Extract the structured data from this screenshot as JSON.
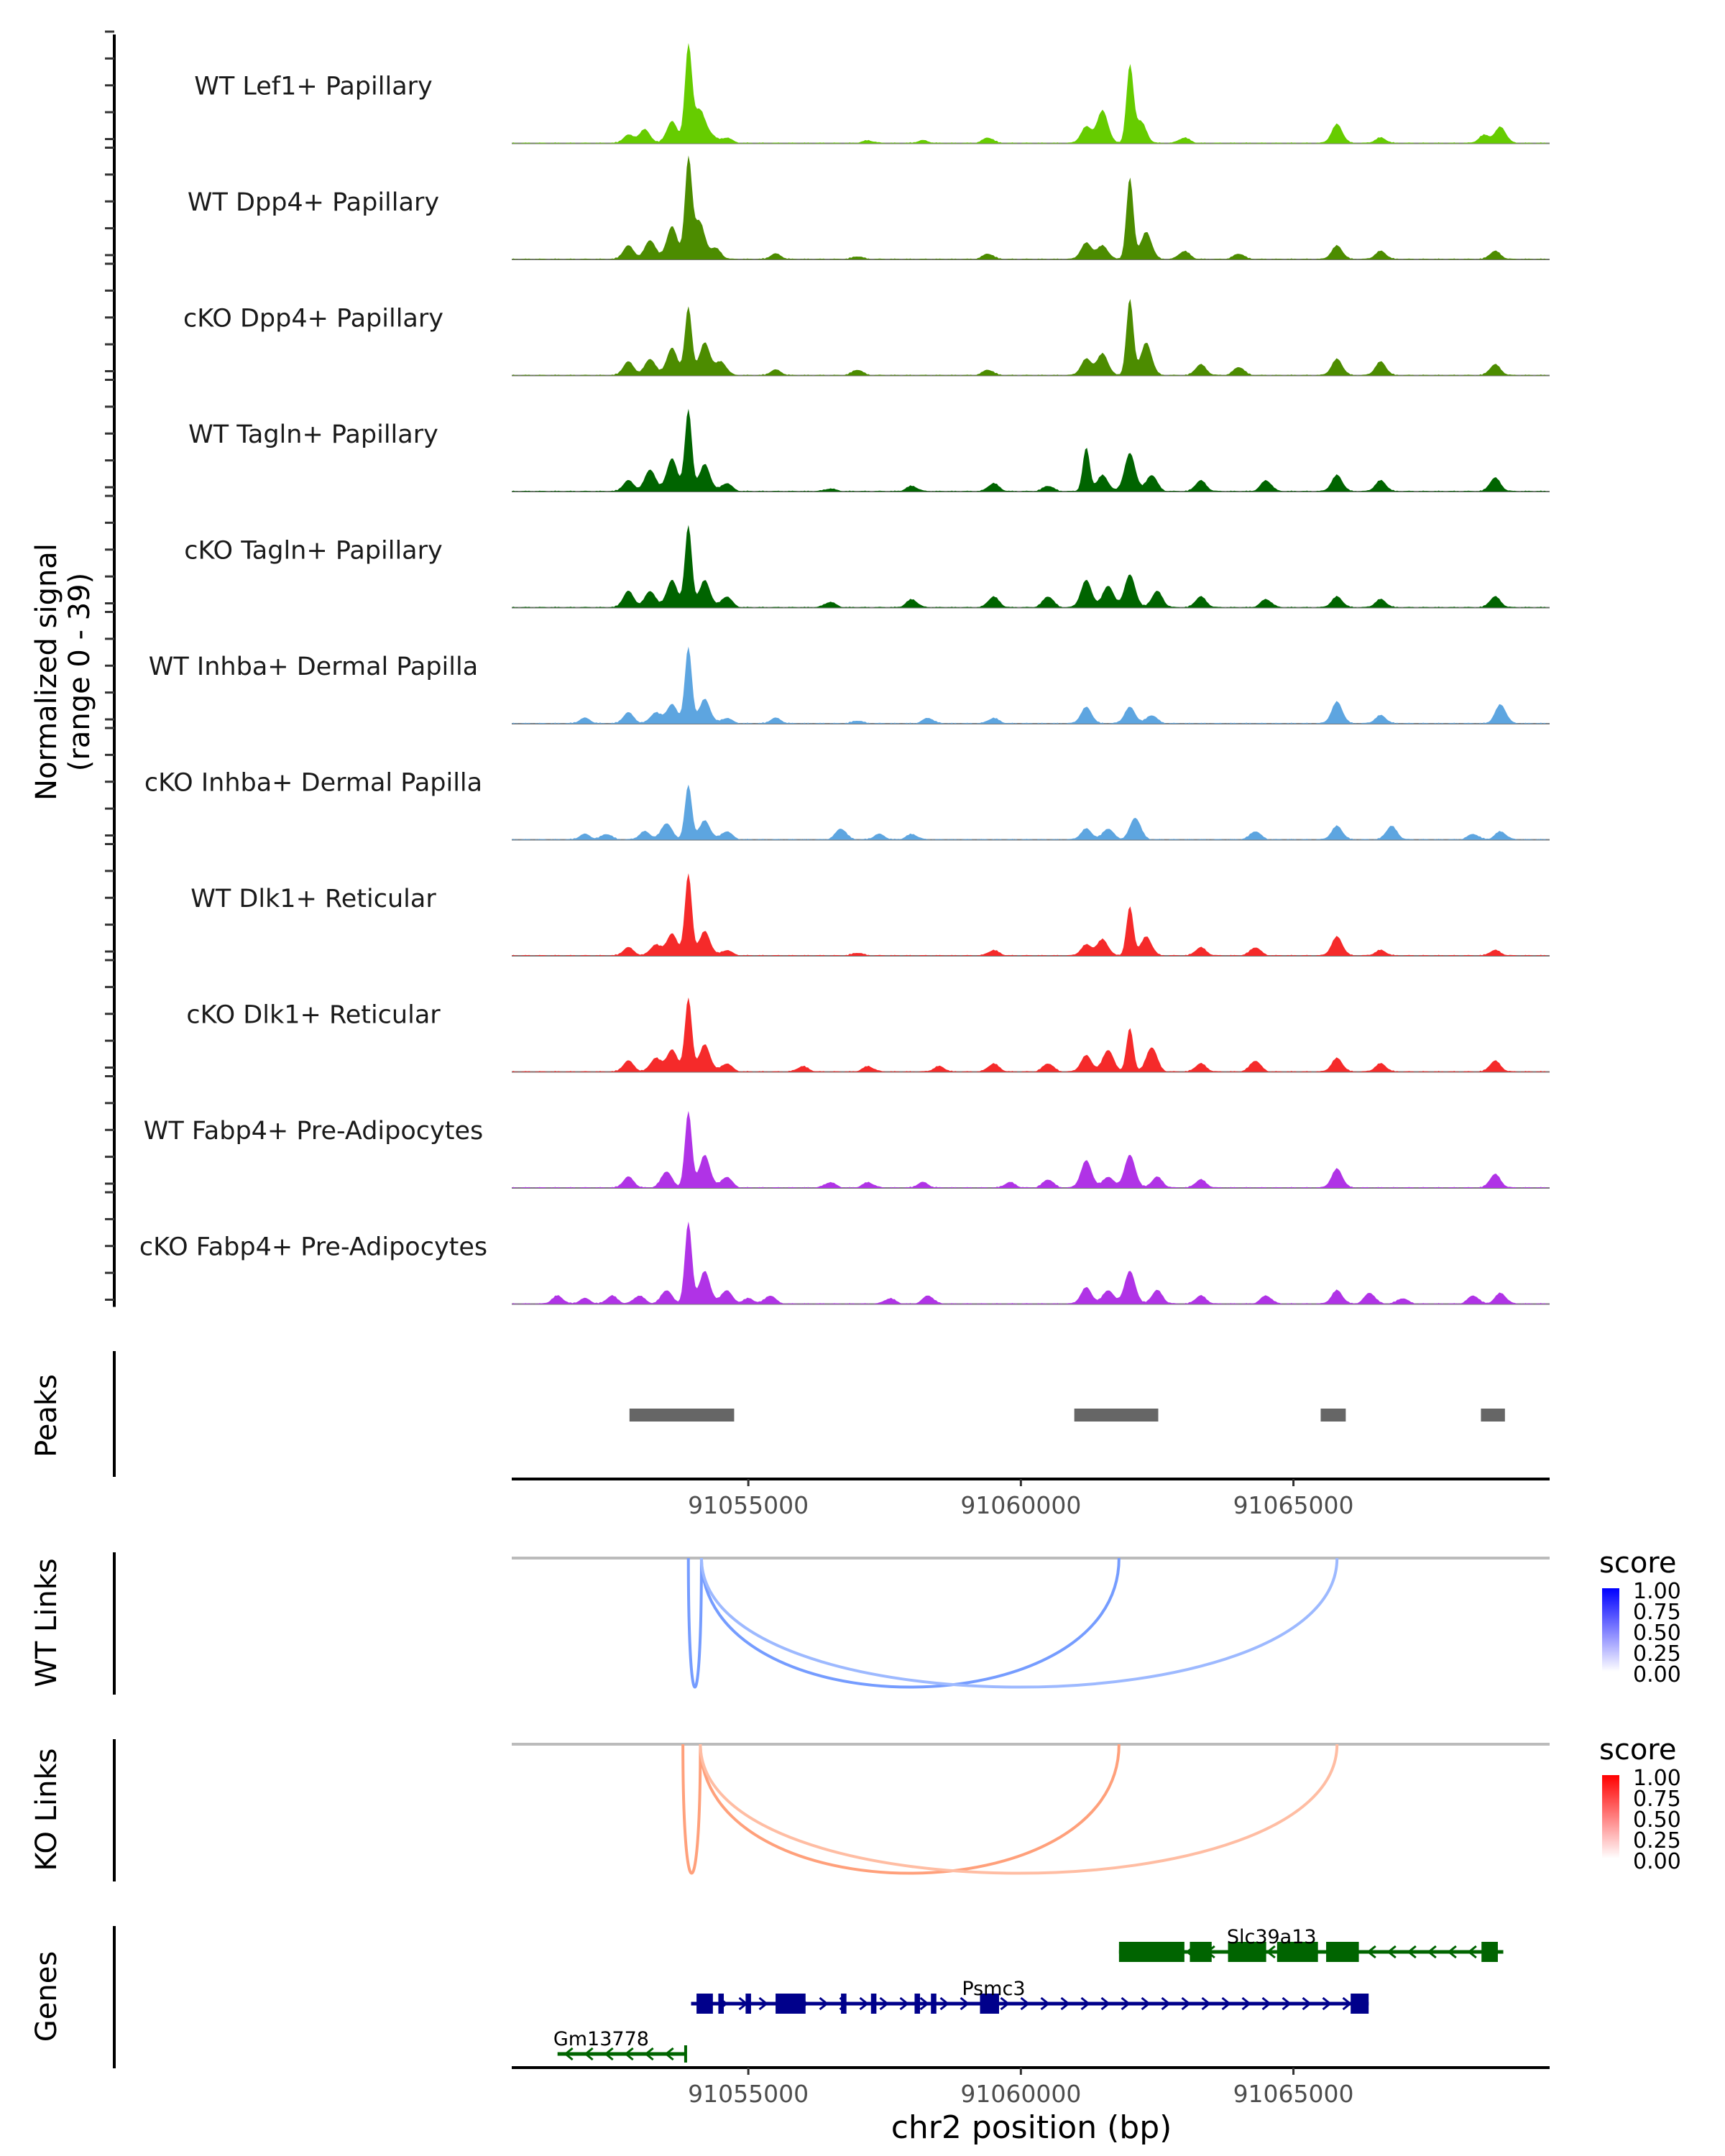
{
  "chart_data": {
    "type": "area",
    "title": "",
    "region": {
      "chrom": "chr2",
      "start": 91050660,
      "end": 91069700
    },
    "coverage": {
      "ylabel_line1": "Normalized signal",
      "ylabel_line2": "(range 0 - 39)",
      "ylim": [
        0,
        39
      ],
      "tracks": [
        {
          "name": "WT Lef1+ Papillary",
          "color": "#66CC00",
          "peaks": [
            [
              91052800,
              3
            ],
            [
              91053100,
              5
            ],
            [
              91053600,
              8
            ],
            [
              91053900,
              35
            ],
            [
              91054100,
              12
            ],
            [
              91054300,
              3
            ],
            [
              91054600,
              2
            ],
            [
              91057200,
              1
            ],
            [
              91058200,
              1
            ],
            [
              91059400,
              2
            ],
            [
              91061200,
              6
            ],
            [
              91061500,
              12
            ],
            [
              91062000,
              28
            ],
            [
              91062200,
              8
            ],
            [
              91063000,
              2
            ],
            [
              91065800,
              7
            ],
            [
              91066600,
              2
            ],
            [
              91068500,
              3
            ],
            [
              91068800,
              6
            ]
          ]
        },
        {
          "name": "WT Dpp4+ Papillary",
          "color": "#4C8C00",
          "peaks": [
            [
              91052800,
              5
            ],
            [
              91053200,
              7
            ],
            [
              91053600,
              12
            ],
            [
              91053900,
              36
            ],
            [
              91054100,
              14
            ],
            [
              91054400,
              4
            ],
            [
              91055500,
              2
            ],
            [
              91057000,
              1
            ],
            [
              91059400,
              2
            ],
            [
              91061200,
              6
            ],
            [
              91061500,
              5
            ],
            [
              91062000,
              30
            ],
            [
              91062300,
              10
            ],
            [
              91063000,
              3
            ],
            [
              91064000,
              2
            ],
            [
              91065800,
              5
            ],
            [
              91066600,
              3
            ],
            [
              91068700,
              3
            ]
          ]
        },
        {
          "name": "cKO Dpp4+ Papillary",
          "color": "#4C8C00",
          "peaks": [
            [
              91052800,
              5
            ],
            [
              91053200,
              6
            ],
            [
              91053600,
              10
            ],
            [
              91053900,
              25
            ],
            [
              91054200,
              12
            ],
            [
              91054500,
              5
            ],
            [
              91055500,
              2
            ],
            [
              91057000,
              2
            ],
            [
              91059400,
              2
            ],
            [
              91061200,
              6
            ],
            [
              91061500,
              8
            ],
            [
              91062000,
              28
            ],
            [
              91062300,
              12
            ],
            [
              91063300,
              4
            ],
            [
              91064000,
              3
            ],
            [
              91065800,
              6
            ],
            [
              91066600,
              5
            ],
            [
              91068700,
              4
            ]
          ]
        },
        {
          "name": "WT Tagln+ Papillary",
          "color": "#006400",
          "peaks": [
            [
              91052800,
              4
            ],
            [
              91053200,
              8
            ],
            [
              91053600,
              12
            ],
            [
              91053900,
              30
            ],
            [
              91054200,
              10
            ],
            [
              91054600,
              3
            ],
            [
              91056500,
              1
            ],
            [
              91058000,
              2
            ],
            [
              91059500,
              3
            ],
            [
              91060500,
              2
            ],
            [
              91061200,
              16
            ],
            [
              91061500,
              6
            ],
            [
              91062000,
              14
            ],
            [
              91062400,
              6
            ],
            [
              91063300,
              4
            ],
            [
              91064500,
              4
            ],
            [
              91065800,
              6
            ],
            [
              91066600,
              4
            ],
            [
              91068700,
              5
            ]
          ]
        },
        {
          "name": "cKO Tagln+ Papillary",
          "color": "#006400",
          "peaks": [
            [
              91052800,
              6
            ],
            [
              91053200,
              6
            ],
            [
              91053600,
              10
            ],
            [
              91053900,
              30
            ],
            [
              91054200,
              10
            ],
            [
              91054600,
              4
            ],
            [
              91056500,
              2
            ],
            [
              91058000,
              3
            ],
            [
              91059500,
              4
            ],
            [
              91060500,
              4
            ],
            [
              91061200,
              10
            ],
            [
              91061600,
              8
            ],
            [
              91062000,
              12
            ],
            [
              91062500,
              6
            ],
            [
              91063300,
              4
            ],
            [
              91064500,
              3
            ],
            [
              91065800,
              4
            ],
            [
              91066600,
              3
            ],
            [
              91068700,
              4
            ]
          ]
        },
        {
          "name": "WT Inhba+ Dermal Papilla",
          "color": "#5DA5E0",
          "peaks": [
            [
              91052000,
              2
            ],
            [
              91052800,
              4
            ],
            [
              91053300,
              4
            ],
            [
              91053600,
              7
            ],
            [
              91053900,
              28
            ],
            [
              91054200,
              9
            ],
            [
              91054600,
              2
            ],
            [
              91055500,
              2
            ],
            [
              91057000,
              1
            ],
            [
              91058300,
              2
            ],
            [
              91059500,
              2
            ],
            [
              91061200,
              6
            ],
            [
              91062000,
              6
            ],
            [
              91062400,
              3
            ],
            [
              91065800,
              8
            ],
            [
              91066600,
              3
            ],
            [
              91068800,
              7
            ]
          ]
        },
        {
          "name": "cKO Inhba+ Dermal Papilla",
          "color": "#5DA5E0",
          "peaks": [
            [
              91052000,
              2
            ],
            [
              91052400,
              2
            ],
            [
              91053100,
              3
            ],
            [
              91053500,
              6
            ],
            [
              91053900,
              20
            ],
            [
              91054200,
              7
            ],
            [
              91054600,
              3
            ],
            [
              91056700,
              4
            ],
            [
              91057400,
              2
            ],
            [
              91058000,
              2
            ],
            [
              91061200,
              4
            ],
            [
              91061600,
              4
            ],
            [
              91062100,
              8
            ],
            [
              91064300,
              3
            ],
            [
              91065800,
              5
            ],
            [
              91066800,
              5
            ],
            [
              91068300,
              2
            ],
            [
              91068800,
              3
            ]
          ]
        },
        {
          "name": "WT Dlk1+ Reticular",
          "color": "#F52A2A",
          "peaks": [
            [
              91052800,
              3
            ],
            [
              91053300,
              4
            ],
            [
              91053600,
              8
            ],
            [
              91053900,
              30
            ],
            [
              91054200,
              9
            ],
            [
              91054600,
              2
            ],
            [
              91057000,
              1
            ],
            [
              91059500,
              2
            ],
            [
              91061200,
              4
            ],
            [
              91061500,
              6
            ],
            [
              91062000,
              18
            ],
            [
              91062300,
              7
            ],
            [
              91063300,
              3
            ],
            [
              91064300,
              3
            ],
            [
              91065800,
              7
            ],
            [
              91066600,
              2
            ],
            [
              91068700,
              2
            ]
          ]
        },
        {
          "name": "cKO Dlk1+ Reticular",
          "color": "#F52A2A",
          "peaks": [
            [
              91052800,
              4
            ],
            [
              91053300,
              5
            ],
            [
              91053600,
              8
            ],
            [
              91053900,
              27
            ],
            [
              91054200,
              10
            ],
            [
              91054600,
              3
            ],
            [
              91056000,
              2
            ],
            [
              91057200,
              2
            ],
            [
              91058500,
              2
            ],
            [
              91059500,
              3
            ],
            [
              91060500,
              3
            ],
            [
              91061200,
              6
            ],
            [
              91061600,
              8
            ],
            [
              91062000,
              16
            ],
            [
              91062400,
              9
            ],
            [
              91063300,
              3
            ],
            [
              91064300,
              4
            ],
            [
              91065800,
              5
            ],
            [
              91066600,
              3
            ],
            [
              91068700,
              4
            ]
          ]
        },
        {
          "name": "WT Fabp4+ Pre-Adipocytes",
          "color": "#B033E6",
          "peaks": [
            [
              91052800,
              4
            ],
            [
              91053500,
              6
            ],
            [
              91053900,
              28
            ],
            [
              91054200,
              12
            ],
            [
              91054600,
              4
            ],
            [
              91056500,
              2
            ],
            [
              91057200,
              2
            ],
            [
              91058200,
              2
            ],
            [
              91059800,
              2
            ],
            [
              91060500,
              3
            ],
            [
              91061200,
              10
            ],
            [
              91061600,
              4
            ],
            [
              91062000,
              12
            ],
            [
              91062500,
              4
            ],
            [
              91063300,
              3
            ],
            [
              91065800,
              7
            ],
            [
              91068700,
              5
            ]
          ]
        },
        {
          "name": "cKO Fabp4+ Pre-Adipocytes",
          "color": "#B033E6",
          "peaks": [
            [
              91051500,
              3
            ],
            [
              91052000,
              2
            ],
            [
              91052500,
              3
            ],
            [
              91053000,
              3
            ],
            [
              91053500,
              5
            ],
            [
              91053900,
              30
            ],
            [
              91054200,
              12
            ],
            [
              91054600,
              5
            ],
            [
              91055000,
              2
            ],
            [
              91055400,
              3
            ],
            [
              91057600,
              2
            ],
            [
              91058300,
              3
            ],
            [
              91061200,
              6
            ],
            [
              91061600,
              5
            ],
            [
              91062000,
              12
            ],
            [
              91062500,
              5
            ],
            [
              91063300,
              3
            ],
            [
              91064500,
              3
            ],
            [
              91065800,
              5
            ],
            [
              91066400,
              4
            ],
            [
              91067000,
              2
            ],
            [
              91068300,
              3
            ],
            [
              91068800,
              4
            ]
          ]
        }
      ]
    },
    "peaks_track": {
      "label": "Peaks",
      "color": "#666666",
      "ranges": [
        [
          91052820,
          91054740
        ],
        [
          91060980,
          91062520
        ],
        [
          91065500,
          91065960
        ],
        [
          91068440,
          91068880
        ]
      ]
    },
    "x_axis": {
      "label": "chr2 position (bp)",
      "ticks": [
        91055000,
        91060000,
        91065000
      ],
      "tick_labels": [
        "91055000",
        "91060000",
        "91065000"
      ]
    },
    "links": [
      {
        "label": "WT Links",
        "legend_title": "score",
        "low_color": "#FFFFFF",
        "high_color": "#0000FF",
        "legend_ticks": [
          "1.00",
          "0.75",
          "0.50",
          "0.25",
          "0.00"
        ],
        "arcs": [
          {
            "start": 91053900,
            "end": 91054140,
            "score": 0.6
          },
          {
            "start": 91054140,
            "end": 91061800,
            "score": 0.6
          },
          {
            "start": 91054140,
            "end": 91065800,
            "score": 0.25
          }
        ]
      },
      {
        "label": "KO Links",
        "legend_title": "score",
        "low_color": "#FFFFFF",
        "high_color": "#FF0000",
        "legend_ticks": [
          "1.00",
          "0.75",
          "0.50",
          "0.25",
          "0.00"
        ],
        "arcs": [
          {
            "start": 91053800,
            "end": 91054120,
            "score": 0.55
          },
          {
            "start": 91054120,
            "end": 91061800,
            "score": 0.55
          },
          {
            "start": 91054120,
            "end": 91065800,
            "score": 0.2
          }
        ]
      }
    ],
    "genes": {
      "label": "Genes",
      "items": [
        {
          "name": "Slc39a13",
          "strand": "-",
          "color": "#006400",
          "row": 0,
          "start": 91061800,
          "end": 91068850,
          "exons": [
            [
              91061800,
              91063000
            ],
            [
              91063100,
              91063500
            ],
            [
              91063800,
              91064500
            ],
            [
              91064700,
              91065450
            ],
            [
              91065600,
              91066200
            ],
            [
              91068450,
              91068750
            ]
          ]
        },
        {
          "name": "Psmc3",
          "strand": "+",
          "color": "#00008B",
          "row": 1,
          "start": 91053950,
          "end": 91066380,
          "exons": [
            [
              91054050,
              91054350
            ],
            [
              91054450,
              91054550
            ],
            [
              91054950,
              91055050
            ],
            [
              91055500,
              91056050
            ],
            [
              91056700,
              91056800
            ],
            [
              91057250,
              91057350
            ],
            [
              91058050,
              91058150
            ],
            [
              91058350,
              91058450
            ],
            [
              91059250,
              91059600
            ],
            [
              91066050,
              91066380
            ]
          ]
        },
        {
          "name": "Gm13778",
          "strand": "-",
          "color": "#006400",
          "row": 2,
          "start": 91051500,
          "end": 91053850,
          "exons": []
        }
      ]
    }
  }
}
